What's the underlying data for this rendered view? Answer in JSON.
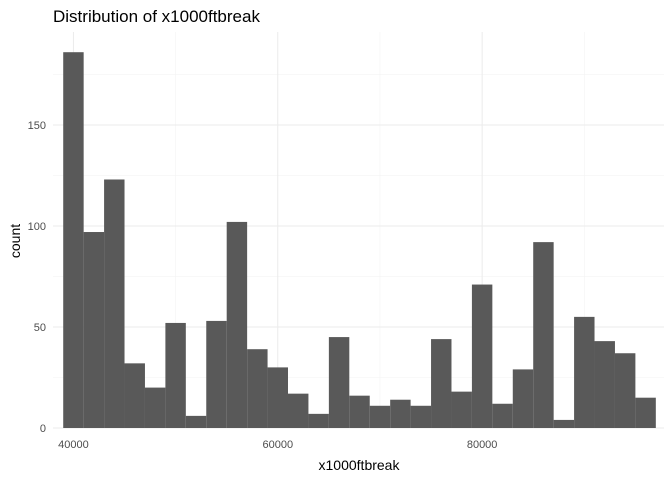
{
  "chart_data": {
    "type": "bar",
    "title": "Distribution of x1000ftbreak",
    "xlabel": "x1000ftbreak",
    "ylabel": "count",
    "xlim": [
      38000,
      97800
    ],
    "ylim": [
      0,
      196
    ],
    "x_ticks": [
      40000,
      60000,
      80000
    ],
    "x_tick_labels": [
      "40000",
      "60000",
      "80000"
    ],
    "y_ticks": [
      0,
      50,
      100,
      150
    ],
    "y_tick_labels": [
      "0",
      "50",
      "100",
      "150"
    ],
    "grid": true,
    "legend": "none",
    "bar_color": "#595959",
    "bins": [
      {
        "x0": 39000,
        "x1": 41000,
        "count": 186
      },
      {
        "x0": 41000,
        "x1": 43000,
        "count": 97
      },
      {
        "x0": 43000,
        "x1": 45000,
        "count": 123
      },
      {
        "x0": 45000,
        "x1": 47000,
        "count": 32
      },
      {
        "x0": 47000,
        "x1": 49000,
        "count": 20
      },
      {
        "x0": 49000,
        "x1": 51000,
        "count": 52
      },
      {
        "x0": 51000,
        "x1": 53000,
        "count": 6
      },
      {
        "x0": 53000,
        "x1": 55000,
        "count": 53
      },
      {
        "x0": 55000,
        "x1": 57000,
        "count": 102
      },
      {
        "x0": 57000,
        "x1": 59000,
        "count": 39
      },
      {
        "x0": 59000,
        "x1": 61000,
        "count": 30
      },
      {
        "x0": 61000,
        "x1": 63000,
        "count": 17
      },
      {
        "x0": 63000,
        "x1": 65000,
        "count": 7
      },
      {
        "x0": 65000,
        "x1": 67000,
        "count": 45
      },
      {
        "x0": 67000,
        "x1": 69000,
        "count": 16
      },
      {
        "x0": 69000,
        "x1": 71000,
        "count": 11
      },
      {
        "x0": 71000,
        "x1": 73000,
        "count": 14
      },
      {
        "x0": 73000,
        "x1": 75000,
        "count": 11
      },
      {
        "x0": 75000,
        "x1": 77000,
        "count": 44
      },
      {
        "x0": 77000,
        "x1": 79000,
        "count": 18
      },
      {
        "x0": 79000,
        "x1": 81000,
        "count": 71
      },
      {
        "x0": 81000,
        "x1": 83000,
        "count": 12
      },
      {
        "x0": 83000,
        "x1": 85000,
        "count": 29
      },
      {
        "x0": 85000,
        "x1": 87000,
        "count": 92
      },
      {
        "x0": 87000,
        "x1": 89000,
        "count": 4
      },
      {
        "x0": 89000,
        "x1": 91000,
        "count": 55
      },
      {
        "x0": 91000,
        "x1": 93000,
        "count": 43
      },
      {
        "x0": 93000,
        "x1": 95000,
        "count": 37
      },
      {
        "x0": 95000,
        "x1": 97000,
        "count": 15
      }
    ]
  }
}
